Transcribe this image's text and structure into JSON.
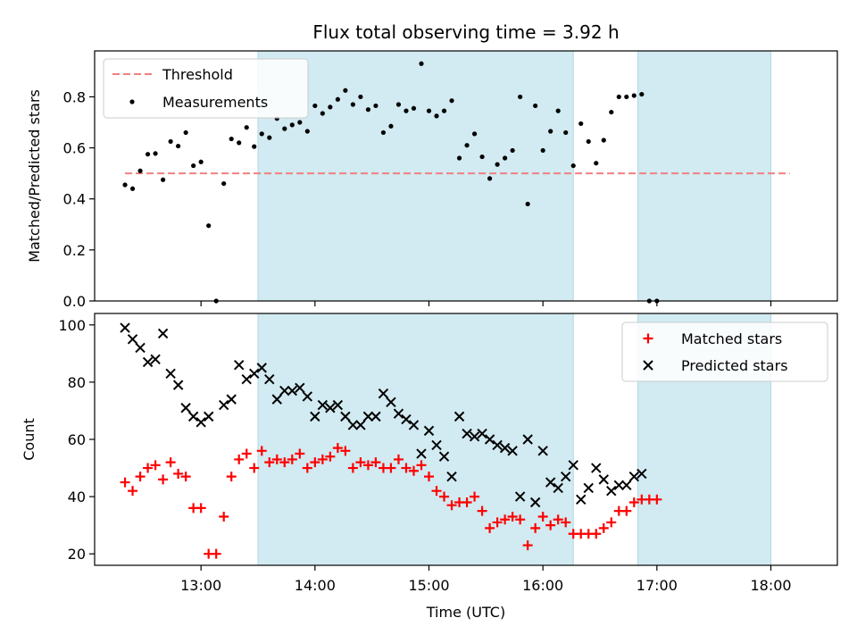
{
  "chart_data": [
    {
      "type": "scatter",
      "title": "Flux total observing time = 3.92 h",
      "xlabel": "",
      "ylabel": "Matched/Predicted stars",
      "ylim": [
        0,
        0.98
      ],
      "yticks": [
        "0.0",
        "0.2",
        "0.4",
        "0.6",
        "0.8"
      ],
      "legend_position": "top-left",
      "threshold": {
        "name": "Threshold",
        "value": 0.5,
        "x_start": "12:20",
        "x_end": "18:10",
        "color": "#f08080"
      },
      "series": [
        {
          "name": "Measurements",
          "color": "#000000",
          "points": [
            [
              "12:20",
              0.455
            ],
            [
              "12:24",
              0.44
            ],
            [
              "12:28",
              0.51
            ],
            [
              "12:32",
              0.575
            ],
            [
              "12:36",
              0.578
            ],
            [
              "12:40",
              0.475
            ],
            [
              "12:44",
              0.625
            ],
            [
              "12:48",
              0.607
            ],
            [
              "12:52",
              0.66
            ],
            [
              "12:56",
              0.53
            ],
            [
              "13:00",
              0.545
            ],
            [
              "13:04",
              0.295
            ],
            [
              "13:08",
              0.0
            ],
            [
              "13:12",
              0.46
            ],
            [
              "13:16",
              0.635
            ],
            [
              "13:20",
              0.62
            ],
            [
              "13:24",
              0.68
            ],
            [
              "13:28",
              0.605
            ],
            [
              "13:32",
              0.655
            ],
            [
              "13:36",
              0.64
            ],
            [
              "13:40",
              0.715
            ],
            [
              "13:44",
              0.675
            ],
            [
              "13:48",
              0.69
            ],
            [
              "13:52",
              0.7
            ],
            [
              "13:56",
              0.665
            ],
            [
              "14:00",
              0.765
            ],
            [
              "14:04",
              0.735
            ],
            [
              "14:08",
              0.76
            ],
            [
              "14:12",
              0.79
            ],
            [
              "14:16",
              0.825
            ],
            [
              "14:20",
              0.77
            ],
            [
              "14:24",
              0.8
            ],
            [
              "14:28",
              0.75
            ],
            [
              "14:32",
              0.765
            ],
            [
              "14:36",
              0.66
            ],
            [
              "14:40",
              0.685
            ],
            [
              "14:44",
              0.77
            ],
            [
              "14:48",
              0.745
            ],
            [
              "14:52",
              0.755
            ],
            [
              "14:56",
              0.93
            ],
            [
              "15:00",
              0.745
            ],
            [
              "15:04",
              0.725
            ],
            [
              "15:08",
              0.745
            ],
            [
              "15:12",
              0.785
            ],
            [
              "15:16",
              0.56
            ],
            [
              "15:20",
              0.61
            ],
            [
              "15:24",
              0.655
            ],
            [
              "15:28",
              0.565
            ],
            [
              "15:32",
              0.48
            ],
            [
              "15:36",
              0.535
            ],
            [
              "15:40",
              0.56
            ],
            [
              "15:44",
              0.59
            ],
            [
              "15:48",
              0.8
            ],
            [
              "15:52",
              0.38
            ],
            [
              "15:56",
              0.765
            ],
            [
              "16:00",
              0.59
            ],
            [
              "16:04",
              0.665
            ],
            [
              "16:08",
              0.745
            ],
            [
              "16:12",
              0.66
            ],
            [
              "16:16",
              0.53
            ],
            [
              "16:20",
              0.695
            ],
            [
              "16:24",
              0.625
            ],
            [
              "16:28",
              0.54
            ],
            [
              "16:32",
              0.63
            ],
            [
              "16:36",
              0.74
            ],
            [
              "16:40",
              0.8
            ],
            [
              "16:44",
              0.8
            ],
            [
              "16:48",
              0.805
            ],
            [
              "16:52",
              0.81
            ],
            [
              "16:56",
              0.0
            ],
            [
              "17:00",
              0.0
            ]
          ]
        }
      ]
    },
    {
      "type": "scatter",
      "title": "",
      "xlabel": "Time (UTC)",
      "ylabel": "Count",
      "ylim": [
        16,
        104
      ],
      "yticks": [
        "20",
        "40",
        "60",
        "80",
        "100"
      ],
      "legend_position": "top-right",
      "series": [
        {
          "name": "Matched stars",
          "color": "#ff0000",
          "marker": "plus",
          "points": [
            [
              "12:20",
              45
            ],
            [
              "12:24",
              42
            ],
            [
              "12:28",
              47
            ],
            [
              "12:32",
              50
            ],
            [
              "12:36",
              51
            ],
            [
              "12:40",
              46
            ],
            [
              "12:44",
              52
            ],
            [
              "12:48",
              48
            ],
            [
              "12:52",
              47
            ],
            [
              "12:56",
              36
            ],
            [
              "13:00",
              36
            ],
            [
              "13:04",
              20
            ],
            [
              "13:08",
              20
            ],
            [
              "13:12",
              33
            ],
            [
              "13:16",
              47
            ],
            [
              "13:20",
              53
            ],
            [
              "13:24",
              55
            ],
            [
              "13:28",
              50
            ],
            [
              "13:32",
              56
            ],
            [
              "13:36",
              52
            ],
            [
              "13:40",
              53
            ],
            [
              "13:44",
              52
            ],
            [
              "13:48",
              53
            ],
            [
              "13:52",
              55
            ],
            [
              "13:56",
              50
            ],
            [
              "14:00",
              52
            ],
            [
              "14:04",
              53
            ],
            [
              "14:08",
              54
            ],
            [
              "14:12",
              57
            ],
            [
              "14:16",
              56
            ],
            [
              "14:20",
              50
            ],
            [
              "14:24",
              52
            ],
            [
              "14:28",
              51
            ],
            [
              "14:32",
              52
            ],
            [
              "14:36",
              50
            ],
            [
              "14:40",
              50
            ],
            [
              "14:44",
              53
            ],
            [
              "14:48",
              50
            ],
            [
              "14:52",
              49
            ],
            [
              "14:56",
              51
            ],
            [
              "15:00",
              47
            ],
            [
              "15:04",
              42
            ],
            [
              "15:08",
              40
            ],
            [
              "15:12",
              37
            ],
            [
              "15:16",
              38
            ],
            [
              "15:20",
              38
            ],
            [
              "15:24",
              40
            ],
            [
              "15:28",
              35
            ],
            [
              "15:32",
              29
            ],
            [
              "15:36",
              31
            ],
            [
              "15:40",
              32
            ],
            [
              "15:44",
              33
            ],
            [
              "15:48",
              32
            ],
            [
              "15:52",
              23
            ],
            [
              "15:56",
              29
            ],
            [
              "16:00",
              33
            ],
            [
              "16:04",
              30
            ],
            [
              "16:08",
              32
            ],
            [
              "16:12",
              31
            ],
            [
              "16:16",
              27
            ],
            [
              "16:20",
              27
            ],
            [
              "16:24",
              27
            ],
            [
              "16:28",
              27
            ],
            [
              "16:32",
              29
            ],
            [
              "16:36",
              31
            ],
            [
              "16:40",
              35
            ],
            [
              "16:44",
              35
            ],
            [
              "16:48",
              38
            ],
            [
              "16:52",
              39
            ],
            [
              "16:56",
              39
            ],
            [
              "17:00",
              39
            ]
          ]
        },
        {
          "name": "Predicted stars",
          "color": "#000000",
          "marker": "x",
          "points": [
            [
              "12:20",
              99
            ],
            [
              "12:24",
              95
            ],
            [
              "12:28",
              92
            ],
            [
              "12:32",
              87
            ],
            [
              "12:36",
              88
            ],
            [
              "12:40",
              97
            ],
            [
              "12:44",
              83
            ],
            [
              "12:48",
              79
            ],
            [
              "12:52",
              71
            ],
            [
              "12:56",
              68
            ],
            [
              "13:00",
              66
            ],
            [
              "13:04",
              68
            ],
            [
              "13:12",
              72
            ],
            [
              "13:16",
              74
            ],
            [
              "13:20",
              86
            ],
            [
              "13:24",
              81
            ],
            [
              "13:28",
              83
            ],
            [
              "13:32",
              85
            ],
            [
              "13:36",
              81
            ],
            [
              "13:40",
              74
            ],
            [
              "13:44",
              77
            ],
            [
              "13:48",
              77
            ],
            [
              "13:52",
              78
            ],
            [
              "13:56",
              75
            ],
            [
              "14:00",
              68
            ],
            [
              "14:04",
              72
            ],
            [
              "14:08",
              71
            ],
            [
              "14:12",
              72
            ],
            [
              "14:16",
              68
            ],
            [
              "14:20",
              65
            ],
            [
              "14:24",
              65
            ],
            [
              "14:28",
              68
            ],
            [
              "14:32",
              68
            ],
            [
              "14:36",
              76
            ],
            [
              "14:40",
              73
            ],
            [
              "14:44",
              69
            ],
            [
              "14:48",
              67
            ],
            [
              "14:52",
              65
            ],
            [
              "14:56",
              55
            ],
            [
              "15:00",
              63
            ],
            [
              "15:04",
              58
            ],
            [
              "15:08",
              54
            ],
            [
              "15:12",
              47
            ],
            [
              "15:16",
              68
            ],
            [
              "15:20",
              62
            ],
            [
              "15:24",
              61
            ],
            [
              "15:28",
              62
            ],
            [
              "15:32",
              60
            ],
            [
              "15:36",
              58
            ],
            [
              "15:40",
              57
            ],
            [
              "15:44",
              56
            ],
            [
              "15:48",
              40
            ],
            [
              "15:52",
              60
            ],
            [
              "15:56",
              38
            ],
            [
              "16:00",
              56
            ],
            [
              "16:04",
              45
            ],
            [
              "16:08",
              43
            ],
            [
              "16:12",
              47
            ],
            [
              "16:16",
              51
            ],
            [
              "16:20",
              39
            ],
            [
              "16:24",
              43
            ],
            [
              "16:28",
              50
            ],
            [
              "16:32",
              46
            ],
            [
              "16:36",
              42
            ],
            [
              "16:40",
              44
            ],
            [
              "16:44",
              44
            ],
            [
              "16:48",
              47
            ],
            [
              "16:52",
              48
            ]
          ]
        }
      ]
    }
  ],
  "x_axis": {
    "ticks": [
      "13:00",
      "14:00",
      "15:00",
      "16:00",
      "17:00",
      "18:00"
    ],
    "range": [
      "12:04",
      "18:35"
    ]
  },
  "shaded_intervals": {
    "color": "#add8e6",
    "ranges": [
      [
        "13:30",
        "16:16"
      ],
      [
        "16:50",
        "18:00"
      ]
    ]
  }
}
